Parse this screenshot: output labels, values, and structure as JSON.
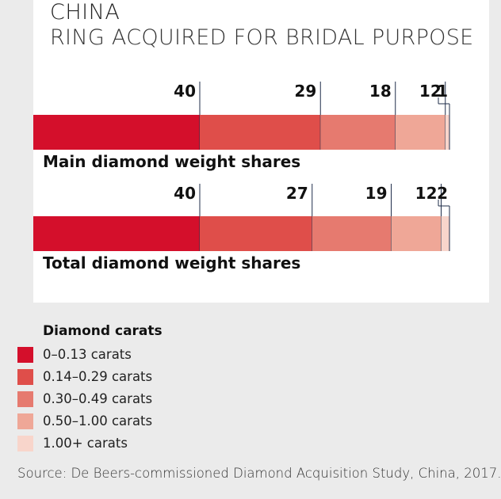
{
  "header": {
    "title": "CHINA",
    "subtitle": "RING ACQUIRED FOR BRIDAL PURPOSE"
  },
  "chart_data": [
    {
      "type": "bar",
      "title": "Main diamond weight shares",
      "orientation": "horizontal-stacked",
      "categories": [
        "0–0.13 carats",
        "0.14–0.29 carats",
        "0.30–0.49 carats",
        "0.50–1.00 carats",
        "1.00+ carats"
      ],
      "values": [
        40,
        29,
        18,
        12,
        1
      ],
      "value_labels": [
        "40",
        "29",
        "18",
        "12",
        "1"
      ]
    },
    {
      "type": "bar",
      "title": "Total diamond weight shares",
      "orientation": "horizontal-stacked",
      "categories": [
        "0–0.13 carats",
        "0.14–0.29 carats",
        "0.30–0.49 carats",
        "0.50–1.00 carats",
        "1.00+ carats"
      ],
      "values": [
        40,
        27,
        19,
        12,
        2
      ],
      "value_labels": [
        "40",
        "27",
        "19",
        "12",
        "2"
      ]
    }
  ],
  "colors": [
    "#d40f2b",
    "#df4e4a",
    "#e67a6f",
    "#efa797",
    "#f8d5cb"
  ],
  "legend": {
    "title": "Diamond carats",
    "items": [
      "0–0.13 carats",
      "0.14–0.29 carats",
      "0.30–0.49 carats",
      "0.50–1.00 carats",
      "1.00+ carats"
    ]
  },
  "source": "Source: De Beers-commissioned Diamond Acquisition Study, China, 2017."
}
